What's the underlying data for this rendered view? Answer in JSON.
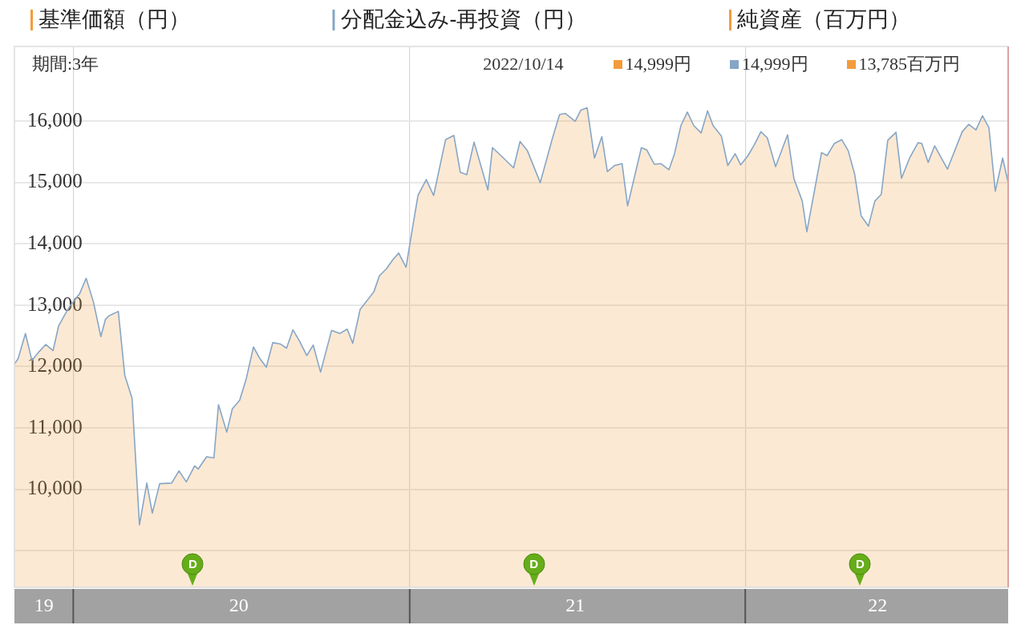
{
  "chart_data": {
    "type": "area",
    "x": [
      "2019-10-29",
      "2019-11-02",
      "2019-11-10",
      "2019-11-17",
      "2019-11-24",
      "2019-12-02",
      "2019-12-10",
      "2019-12-16",
      "2019-12-23",
      "2019-12-29",
      "2020-01-08",
      "2020-01-15",
      "2020-01-23",
      "2020-01-31",
      "2020-02-05",
      "2020-02-09",
      "2020-02-19",
      "2020-02-26",
      "2020-03-05",
      "2020-03-13",
      "2020-03-21",
      "2020-03-27",
      "2020-04-04",
      "2020-04-17",
      "2020-04-25",
      "2020-05-03",
      "2020-05-12",
      "2020-05-16",
      "2020-05-25",
      "2020-06-02",
      "2020-06-07",
      "2020-06-16",
      "2020-06-22",
      "2020-06-30",
      "2020-07-07",
      "2020-07-15",
      "2020-07-22",
      "2020-07-29",
      "2020-08-05",
      "2020-08-13",
      "2020-08-20",
      "2020-08-27",
      "2020-09-03",
      "2020-09-11",
      "2020-09-18",
      "2020-09-26",
      "2020-10-08",
      "2020-10-17",
      "2020-10-25",
      "2020-10-31",
      "2020-11-08",
      "2020-11-23",
      "2020-11-29",
      "2020-12-07",
      "2020-12-14",
      "2020-12-20",
      "2020-12-28",
      "2021-01-04",
      "2021-01-10",
      "2021-01-19",
      "2021-01-27",
      "2021-02-09",
      "2021-02-18",
      "2021-02-25",
      "2021-03-04",
      "2021-03-12",
      "2021-03-27",
      "2021-04-01",
      "2021-04-11",
      "2021-04-24",
      "2021-05-01",
      "2021-05-09",
      "2021-05-23",
      "2021-06-05",
      "2021-06-13",
      "2021-06-19",
      "2021-06-30",
      "2021-07-06",
      "2021-07-13",
      "2021-07-21",
      "2021-07-29",
      "2021-08-04",
      "2021-08-12",
      "2021-08-20",
      "2021-08-26",
      "2021-09-10",
      "2021-09-16",
      "2021-09-24",
      "2021-10-01",
      "2021-10-10",
      "2021-10-16",
      "2021-10-23",
      "2021-10-30",
      "2021-11-06",
      "2021-11-14",
      "2021-11-21",
      "2021-11-27",
      "2021-12-06",
      "2021-12-13",
      "2021-12-21",
      "2021-12-27",
      "2022-01-04",
      "2022-01-11",
      "2022-01-18",
      "2022-01-25",
      "2022-02-03",
      "2022-02-16",
      "2022-02-23",
      "2022-03-04",
      "2022-03-09",
      "2022-03-25",
      "2022-03-31",
      "2022-04-08",
      "2022-04-16",
      "2022-04-23",
      "2022-04-30",
      "2022-05-07",
      "2022-05-15",
      "2022-05-22",
      "2022-05-29",
      "2022-06-05",
      "2022-06-14",
      "2022-06-20",
      "2022-06-29",
      "2022-07-08",
      "2022-07-12",
      "2022-07-19",
      "2022-07-26",
      "2022-08-09",
      "2022-08-25",
      "2022-09-01",
      "2022-09-09",
      "2022-09-16",
      "2022-09-23",
      "2022-09-30",
      "2022-10-08",
      "2022-10-14"
    ],
    "series": [
      {
        "name": "基準価額（円）",
        "color": "#f39c3c",
        "values": [
          12040,
          12130,
          12540,
          12100,
          12230,
          12360,
          12260,
          12660,
          12850,
          13000,
          13190,
          13440,
          13050,
          12490,
          12770,
          12830,
          12900,
          11860,
          11480,
          9420,
          10100,
          9610,
          10090,
          10100,
          10300,
          10120,
          10380,
          10330,
          10530,
          10510,
          11380,
          10930,
          11310,
          11450,
          11790,
          12320,
          12130,
          11990,
          12390,
          12370,
          12300,
          12600,
          12420,
          12180,
          12350,
          11910,
          12590,
          12540,
          12610,
          12380,
          12930,
          13220,
          13480,
          13600,
          13750,
          13850,
          13620,
          14260,
          14790,
          15050,
          14790,
          15700,
          15770,
          15170,
          15130,
          15660,
          14880,
          15570,
          15430,
          15240,
          15670,
          15520,
          15000,
          15710,
          16110,
          16130,
          16000,
          16180,
          16220,
          15400,
          15750,
          15180,
          15280,
          15310,
          14620,
          15570,
          15530,
          15300,
          15310,
          15210,
          15470,
          15930,
          16150,
          15930,
          15810,
          16170,
          15930,
          15760,
          15280,
          15470,
          15290,
          15440,
          15620,
          15830,
          15730,
          15260,
          15780,
          15060,
          14700,
          14200,
          15490,
          15440,
          15640,
          15700,
          15520,
          15140,
          14460,
          14290,
          14700,
          14810,
          15690,
          15820,
          15070,
          15410,
          15650,
          15640,
          15330,
          15600,
          15220,
          15830,
          15950,
          15860,
          16090,
          15900,
          14860,
          15400,
          14999
        ]
      },
      {
        "name": "分配金込み-再投資（円）",
        "type": "line",
        "color": "#86a6c6",
        "values": [
          12040,
          12130,
          12540,
          12100,
          12230,
          12360,
          12260,
          12660,
          12850,
          13000,
          13190,
          13440,
          13050,
          12490,
          12770,
          12830,
          12900,
          11860,
          11480,
          9420,
          10100,
          9610,
          10090,
          10100,
          10300,
          10120,
          10380,
          10330,
          10530,
          10510,
          11380,
          10930,
          11310,
          11450,
          11790,
          12320,
          12130,
          11990,
          12390,
          12370,
          12300,
          12600,
          12420,
          12180,
          12350,
          11910,
          12590,
          12540,
          12610,
          12380,
          12930,
          13220,
          13480,
          13600,
          13750,
          13850,
          13620,
          14260,
          14790,
          15050,
          14790,
          15700,
          15770,
          15170,
          15130,
          15660,
          14880,
          15570,
          15430,
          15240,
          15670,
          15520,
          15000,
          15710,
          16110,
          16130,
          16000,
          16180,
          16220,
          15400,
          15750,
          15180,
          15280,
          15310,
          14620,
          15570,
          15530,
          15300,
          15310,
          15210,
          15470,
          15930,
          16150,
          15930,
          15810,
          16170,
          15930,
          15760,
          15280,
          15470,
          15290,
          15440,
          15620,
          15830,
          15730,
          15260,
          15780,
          15060,
          14700,
          14200,
          15490,
          15440,
          15640,
          15700,
          15520,
          15140,
          14460,
          14290,
          14700,
          14810,
          15690,
          15820,
          15070,
          15410,
          15650,
          15640,
          15330,
          15600,
          15220,
          15830,
          15950,
          15860,
          16090,
          15900,
          14860,
          15400,
          14999
        ]
      },
      {
        "name": "純資産（百万円）",
        "color": "#f39c3c",
        "values": [
          null,
          null,
          null,
          null,
          null,
          null,
          null,
          null,
          null,
          null,
          null,
          null,
          null,
          null,
          null,
          null,
          null,
          null,
          null,
          null,
          null,
          null,
          null,
          null,
          null,
          null,
          null,
          null,
          null,
          null,
          null,
          null,
          null,
          null,
          null,
          null,
          null,
          null,
          null,
          null,
          null,
          null,
          null,
          null,
          null,
          null,
          null,
          null,
          null,
          null,
          null,
          null,
          null,
          null,
          null,
          null,
          null,
          null,
          null,
          null,
          null,
          null,
          null,
          null,
          null,
          null,
          null,
          null,
          null,
          null,
          null,
          null,
          null,
          null,
          null,
          null,
          null,
          null,
          null,
          null,
          null,
          null,
          null,
          null,
          null,
          null,
          null,
          null,
          null,
          null,
          null,
          null,
          null,
          null,
          null,
          null,
          null,
          null,
          null,
          null,
          null,
          null,
          null,
          null,
          null,
          null,
          null,
          null,
          null,
          null,
          null,
          null,
          null,
          null,
          null,
          null,
          null,
          null,
          null,
          null,
          null,
          null,
          null,
          null,
          null,
          null,
          null,
          null,
          null,
          null,
          null,
          null,
          null,
          null,
          null,
          null,
          null
        ]
      }
    ],
    "xlim": [
      "2019-10-29",
      "2022-10-14"
    ],
    "xticks": [
      {
        "value": "2019-11-30",
        "label": "19"
      },
      {
        "value": "2020-01-01",
        "label": null
      },
      {
        "value": "2020-06-29",
        "label": "20"
      },
      {
        "value": "2021-01-01",
        "label": null
      },
      {
        "value": "2021-06-30",
        "label": "21"
      },
      {
        "value": "2022-01-01",
        "label": null
      },
      {
        "value": "2022-05-25",
        "label": "22"
      }
    ],
    "ylim": [
      8400,
      17220
    ],
    "yticks": [
      {
        "value": 9000,
        "label": null
      },
      {
        "value": 10000,
        "label": "10,000"
      },
      {
        "value": 11000,
        "label": "11,000"
      },
      {
        "value": 12000,
        "label": "12,000"
      },
      {
        "value": 13000,
        "label": "13,000"
      },
      {
        "value": 14000,
        "label": "14,000"
      },
      {
        "value": 15000,
        "label": "15,000"
      },
      {
        "value": 16000,
        "label": "16,000"
      }
    ],
    "grid": true,
    "legend": "top",
    "ref_lines": [
      {
        "axis": "x",
        "value": "2022-10-14",
        "color": "#d9a3a3"
      }
    ],
    "annotations": [
      "期間:3年",
      "2022/10/14",
      "14,999円",
      "14,999円",
      "13,785百万円",
      {
        "text": "D",
        "x": "2020-05-10",
        "y": 8430
      },
      {
        "text": "D",
        "x": "2021-05-16",
        "y": 8430
      },
      {
        "text": "D",
        "x": "2022-05-06",
        "y": 8430
      }
    ]
  }
}
